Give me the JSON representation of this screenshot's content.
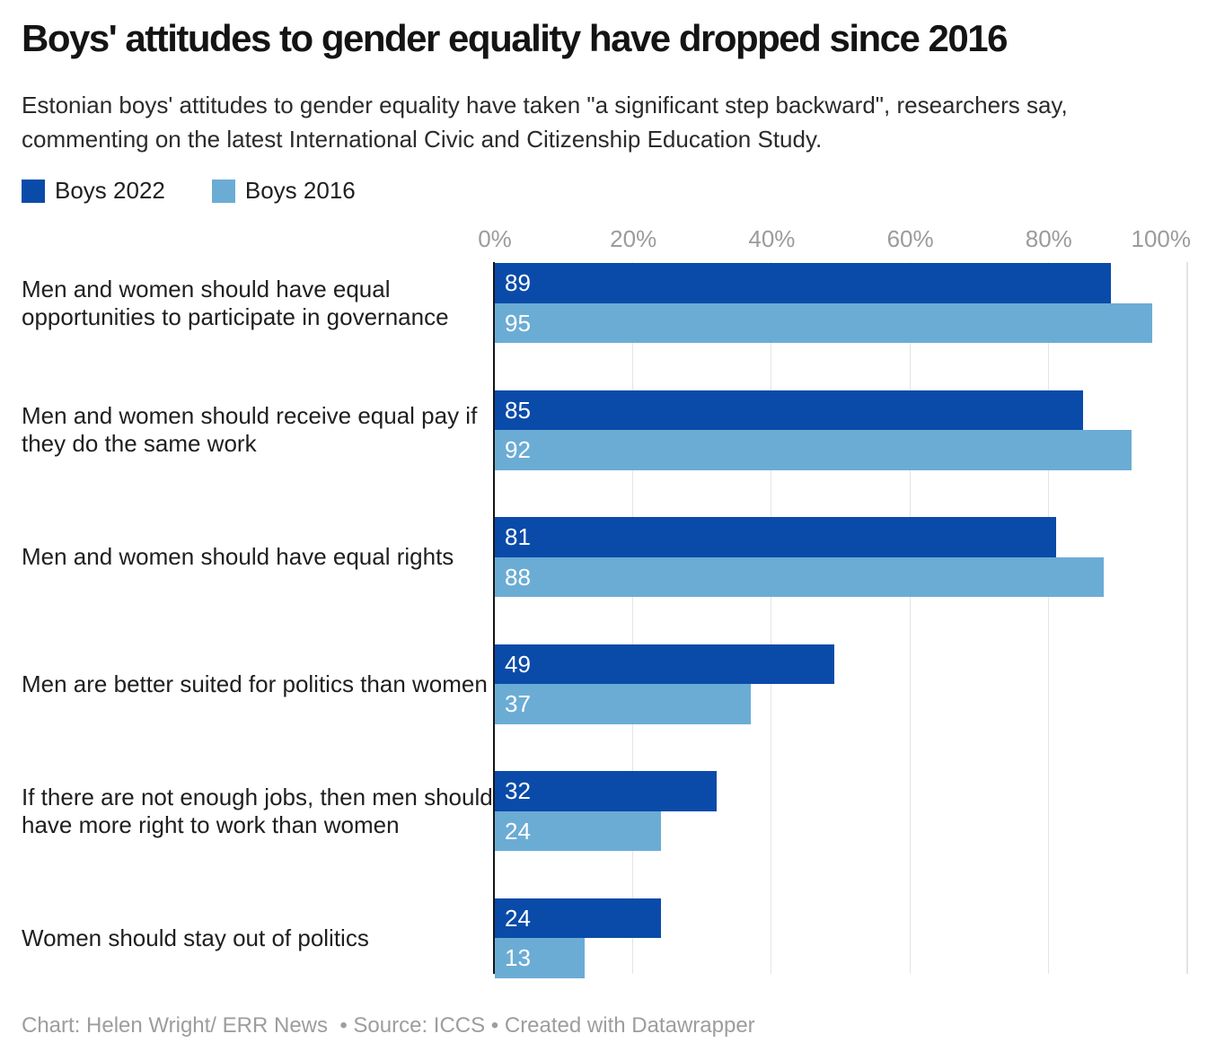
{
  "header": {
    "title": "Boys' attitudes to gender equality have dropped since 2016",
    "subtitle": "Estonian boys' attitudes to gender equality have taken \"a significant step backward\", researchers say, commenting on the latest International Civic and Citizenship Education Study."
  },
  "footer": {
    "text": "Chart: Helen Wright/ ERR News  • Source: ICCS • Created with Datawrapper"
  },
  "colors": {
    "boys_2022": "#0A4BA9",
    "boys_2016": "#6BACD5",
    "gridline": "#e4e4e4",
    "axis_line": "#151515",
    "tick_text": "#9b9b9b",
    "bar_value_text": "#ffffff"
  },
  "chart_data": {
    "type": "bar",
    "orientation": "horizontal",
    "title": "Boys' attitudes to gender equality have dropped since 2016",
    "categories": [
      "Men and women should have equal opportunities to participate in governance",
      "Men and women should receive equal pay if they do the same work",
      "Men and women should have equal rights",
      "Men are better suited for politics than women",
      "If there are not enough jobs, then men should have more right to work than women",
      "Women should stay out of politics"
    ],
    "series": [
      {
        "name": "Boys 2022",
        "color": "#0A4BA9",
        "values": [
          89,
          85,
          81,
          49,
          32,
          24
        ]
      },
      {
        "name": "Boys 2016",
        "color": "#6BACD5",
        "values": [
          95,
          92,
          88,
          37,
          24,
          13
        ]
      }
    ],
    "x_ticks": [
      "0%",
      "20%",
      "40%",
      "60%",
      "80%",
      "100%"
    ],
    "xlim": [
      0,
      100
    ],
    "unit": "%",
    "grid": true,
    "legend_position": "top-left",
    "value_labels": "inside-start"
  }
}
